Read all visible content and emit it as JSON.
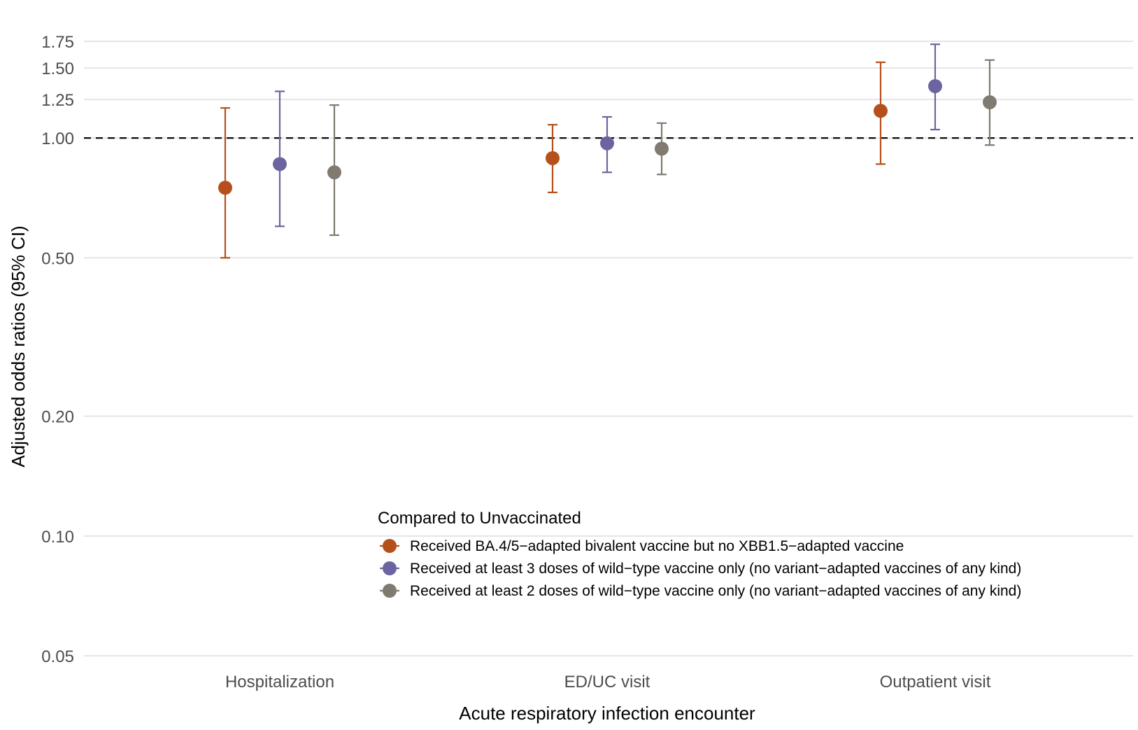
{
  "chart_data": {
    "type": "scatter",
    "xlabel": "Acute respiratory infection encounter",
    "ylabel": "Adjusted odds ratios (95% CI)",
    "y_scale": "log",
    "ylim": [
      0.05,
      1.8
    ],
    "y_ticks": [
      0.05,
      0.1,
      0.2,
      0.5,
      1.0,
      1.25,
      1.5,
      1.75
    ],
    "y_tick_labels": [
      "0.05",
      "0.10",
      "0.20",
      "0.50",
      "1.00",
      "1.25",
      "1.50",
      "1.75"
    ],
    "reference_line": 1.0,
    "grid": "horizontal",
    "categories": [
      "Hospitalization",
      "ED/UC visit",
      "Outpatient visit"
    ],
    "legend": {
      "title": "Compared to Unvaccinated",
      "placement": "bottom-right"
    },
    "series": [
      {
        "name": "Received BA.4/5−adapted bivalent vaccine but no XBB1.5−adapted vaccine",
        "color": "#B5501C",
        "estimates": [
          0.75,
          0.89,
          1.17
        ],
        "ci_lower": [
          0.5,
          0.73,
          0.86
        ],
        "ci_upper": [
          1.19,
          1.08,
          1.55
        ]
      },
      {
        "name": "Received at least 3 doses of wild−type vaccine only (no variant−adapted vaccines of any kind)",
        "color": "#6A65A0",
        "estimates": [
          0.86,
          0.97,
          1.35
        ],
        "ci_lower": [
          0.6,
          0.82,
          1.05
        ],
        "ci_upper": [
          1.31,
          1.13,
          1.72
        ]
      },
      {
        "name": "Received at least 2 doses of wild−type vaccine only (no variant−adapted vaccines of any kind)",
        "color": "#807A70",
        "estimates": [
          0.82,
          0.94,
          1.23
        ],
        "ci_lower": [
          0.57,
          0.81,
          0.96
        ],
        "ci_upper": [
          1.21,
          1.09,
          1.57
        ]
      }
    ]
  }
}
